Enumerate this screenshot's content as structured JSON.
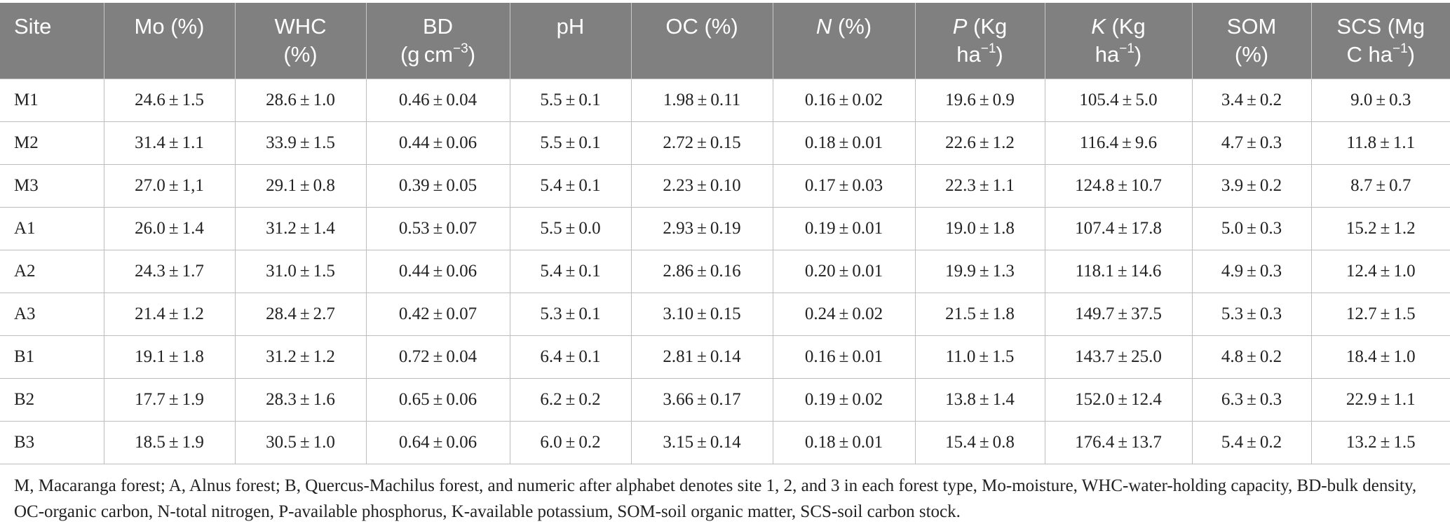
{
  "table": {
    "headers": [
      {
        "id": "site",
        "parts": [
          {
            "t": "Site"
          }
        ]
      },
      {
        "id": "mo",
        "parts": [
          {
            "t": "Mo (%)"
          }
        ]
      },
      {
        "id": "whc",
        "parts": [
          {
            "t": "WHC"
          },
          {
            "br": true
          },
          {
            "t": "(%)"
          }
        ]
      },
      {
        "id": "bd",
        "parts": [
          {
            "t": "BD"
          },
          {
            "br": true
          },
          {
            "t": "(g cm"
          },
          {
            "sup": "−3"
          },
          {
            "t": ")"
          }
        ]
      },
      {
        "id": "ph",
        "parts": [
          {
            "t": "pH"
          }
        ]
      },
      {
        "id": "oc",
        "parts": [
          {
            "t": "OC (%)"
          }
        ]
      },
      {
        "id": "n",
        "parts": [
          {
            "em": "N"
          },
          {
            "t": " (%)"
          }
        ]
      },
      {
        "id": "p",
        "parts": [
          {
            "em": "P"
          },
          {
            "t": " (Kg"
          },
          {
            "br": true
          },
          {
            "t": "ha"
          },
          {
            "sup": "−1"
          },
          {
            "t": ")"
          }
        ]
      },
      {
        "id": "k",
        "parts": [
          {
            "em": "K"
          },
          {
            "t": " (Kg"
          },
          {
            "br": true
          },
          {
            "t": "ha"
          },
          {
            "sup": "−1"
          },
          {
            "t": ")"
          }
        ]
      },
      {
        "id": "som",
        "parts": [
          {
            "t": "SOM"
          },
          {
            "br": true
          },
          {
            "t": "(%)"
          }
        ]
      },
      {
        "id": "scs",
        "parts": [
          {
            "t": "SCS (Mg"
          },
          {
            "br": true
          },
          {
            "t": "C ha"
          },
          {
            "sup": "−1"
          },
          {
            "t": ")"
          }
        ]
      }
    ],
    "rows": [
      [
        "M1",
        "24.6 ± 1.5",
        "28.6 ± 1.0",
        "0.46 ± 0.04",
        "5.5 ± 0.1",
        "1.98 ± 0.11",
        "0.16 ± 0.02",
        "19.6 ± 0.9",
        "105.4 ± 5.0",
        "3.4 ± 0.2",
        "9.0 ± 0.3"
      ],
      [
        "M2",
        "31.4 ± 1.1",
        "33.9 ± 1.5",
        "0.44 ± 0.06",
        "5.5 ± 0.1",
        "2.72 ± 0.15",
        "0.18 ± 0.01",
        "22.6 ± 1.2",
        "116.4 ± 9.6",
        "4.7 ± 0.3",
        "11.8 ± 1.1"
      ],
      [
        "M3",
        "27.0 ± 1,1",
        "29.1 ± 0.8",
        "0.39 ± 0.05",
        "5.4 ± 0.1",
        "2.23 ± 0.10",
        "0.17 ± 0.03",
        "22.3 ± 1.1",
        "124.8 ± 10.7",
        "3.9 ± 0.2",
        "8.7 ± 0.7"
      ],
      [
        "A1",
        "26.0 ± 1.4",
        "31.2 ± 1.4",
        "0.53 ± 0.07",
        "5.5 ± 0.0",
        "2.93 ± 0.19",
        "0.19 ± 0.01",
        "19.0 ± 1.8",
        "107.4 ± 17.8",
        "5.0 ± 0.3",
        "15.2 ± 1.2"
      ],
      [
        "A2",
        "24.3 ± 1.7",
        "31.0 ± 1.5",
        "0.44 ± 0.06",
        "5.4 ± 0.1",
        "2.86 ± 0.16",
        "0.20 ± 0.01",
        "19.9 ± 1.3",
        "118.1 ± 14.6",
        "4.9 ± 0.3",
        "12.4 ± 1.0"
      ],
      [
        "A3",
        "21.4 ± 1.2",
        "28.4 ± 2.7",
        "0.42 ± 0.07",
        "5.3 ± 0.1",
        "3.10 ± 0.15",
        "0.24 ± 0.02",
        "21.5 ± 1.8",
        "149.7 ± 37.5",
        "5.3 ± 0.3",
        "12.7 ± 1.5"
      ],
      [
        "B1",
        "19.1 ± 1.8",
        "31.2 ± 1.2",
        "0.72 ± 0.04",
        "6.4 ± 0.1",
        "2.81 ± 0.14",
        "0.16 ± 0.01",
        "11.0 ± 1.5",
        "143.7 ± 25.0",
        "4.8 ± 0.2",
        "18.4 ± 1.0"
      ],
      [
        "B2",
        "17.7 ± 1.9",
        "28.3 ± 1.6",
        "0.65 ± 0.06",
        "6.2 ± 0.2",
        "3.66 ± 0.17",
        "0.19 ± 0.02",
        "13.8 ± 1.4",
        "152.0 ± 12.4",
        "6.3 ± 0.3",
        "22.9 ± 1.1"
      ],
      [
        "B3",
        "18.5 ± 1.9",
        "30.5 ± 1.0",
        "0.64 ± 0.06",
        "6.0 ± 0.2",
        "3.15 ± 0.14",
        "0.18 ± 0.01",
        "15.4 ± 0.8",
        "176.4 ± 13.7",
        "5.4 ± 0.2",
        "13.2 ± 1.5"
      ]
    ]
  },
  "footnote": "M, Macaranga forest; A, Alnus forest; B, Quercus-Machilus forest, and numeric after alphabet denotes site 1, 2, and 3 in each forest type, Mo-moisture, WHC-water-holding capacity, BD-bulk density, OC-organic carbon, N-total nitrogen, P-available phosphorus, K-available potassium, SOM-soil organic matter, SCS-soil carbon stock.",
  "colors": {
    "header_bg": "#808080",
    "header_text": "#ffffff",
    "grid": "#bdbdbd"
  }
}
